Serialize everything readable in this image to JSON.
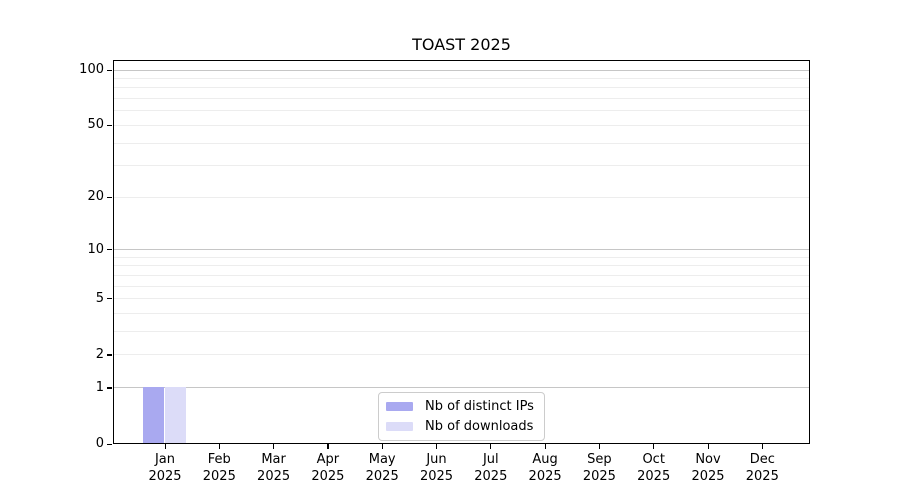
{
  "figure": {
    "title": "TOAST 2025"
  },
  "chart_data": {
    "type": "bar",
    "title": "TOAST 2025",
    "categories": [
      "Jan 2025",
      "Feb 2025",
      "Mar 2025",
      "Apr 2025",
      "May 2025",
      "Jun 2025",
      "Jul 2025",
      "Aug 2025",
      "Sep 2025",
      "Oct 2025",
      "Nov 2025",
      "Dec 2025"
    ],
    "months": [
      "Jan",
      "Feb",
      "Mar",
      "Apr",
      "May",
      "Jun",
      "Jul",
      "Aug",
      "Sep",
      "Oct",
      "Nov",
      "Dec"
    ],
    "year_label": "2025",
    "series": [
      {
        "name": "Nb of distinct IPs",
        "color": "#a9a9f0",
        "values": [
          1,
          0,
          0,
          0,
          0,
          0,
          0,
          0,
          0,
          0,
          0,
          0
        ]
      },
      {
        "name": "Nb of downloads",
        "color": "#dcdcf8",
        "values": [
          1,
          0,
          0,
          0,
          0,
          0,
          0,
          0,
          0,
          0,
          0,
          0
        ]
      }
    ],
    "y_axis": {
      "scale": "log1p",
      "ylim": [
        0,
        100
      ],
      "labeled_ticks": [
        0,
        1,
        2,
        5,
        10,
        20,
        50,
        100
      ],
      "decade_ticks": [
        1,
        10,
        100
      ],
      "minor_ticks": [
        3,
        4,
        6,
        7,
        8,
        9,
        30,
        40,
        60,
        70,
        80,
        90
      ]
    },
    "legend": {
      "position": "lower center",
      "entries": [
        "Nb of distinct IPs",
        "Nb of downloads"
      ]
    },
    "grid": true
  },
  "colors": {
    "bar_distinct_ips": "#a9a9f0",
    "bar_downloads": "#dcdcf8",
    "grid_decade": "#c6c6c6",
    "grid_minor": "#ededed",
    "axis": "#000000",
    "legend_border": "#cccccc",
    "background": "#ffffff"
  }
}
